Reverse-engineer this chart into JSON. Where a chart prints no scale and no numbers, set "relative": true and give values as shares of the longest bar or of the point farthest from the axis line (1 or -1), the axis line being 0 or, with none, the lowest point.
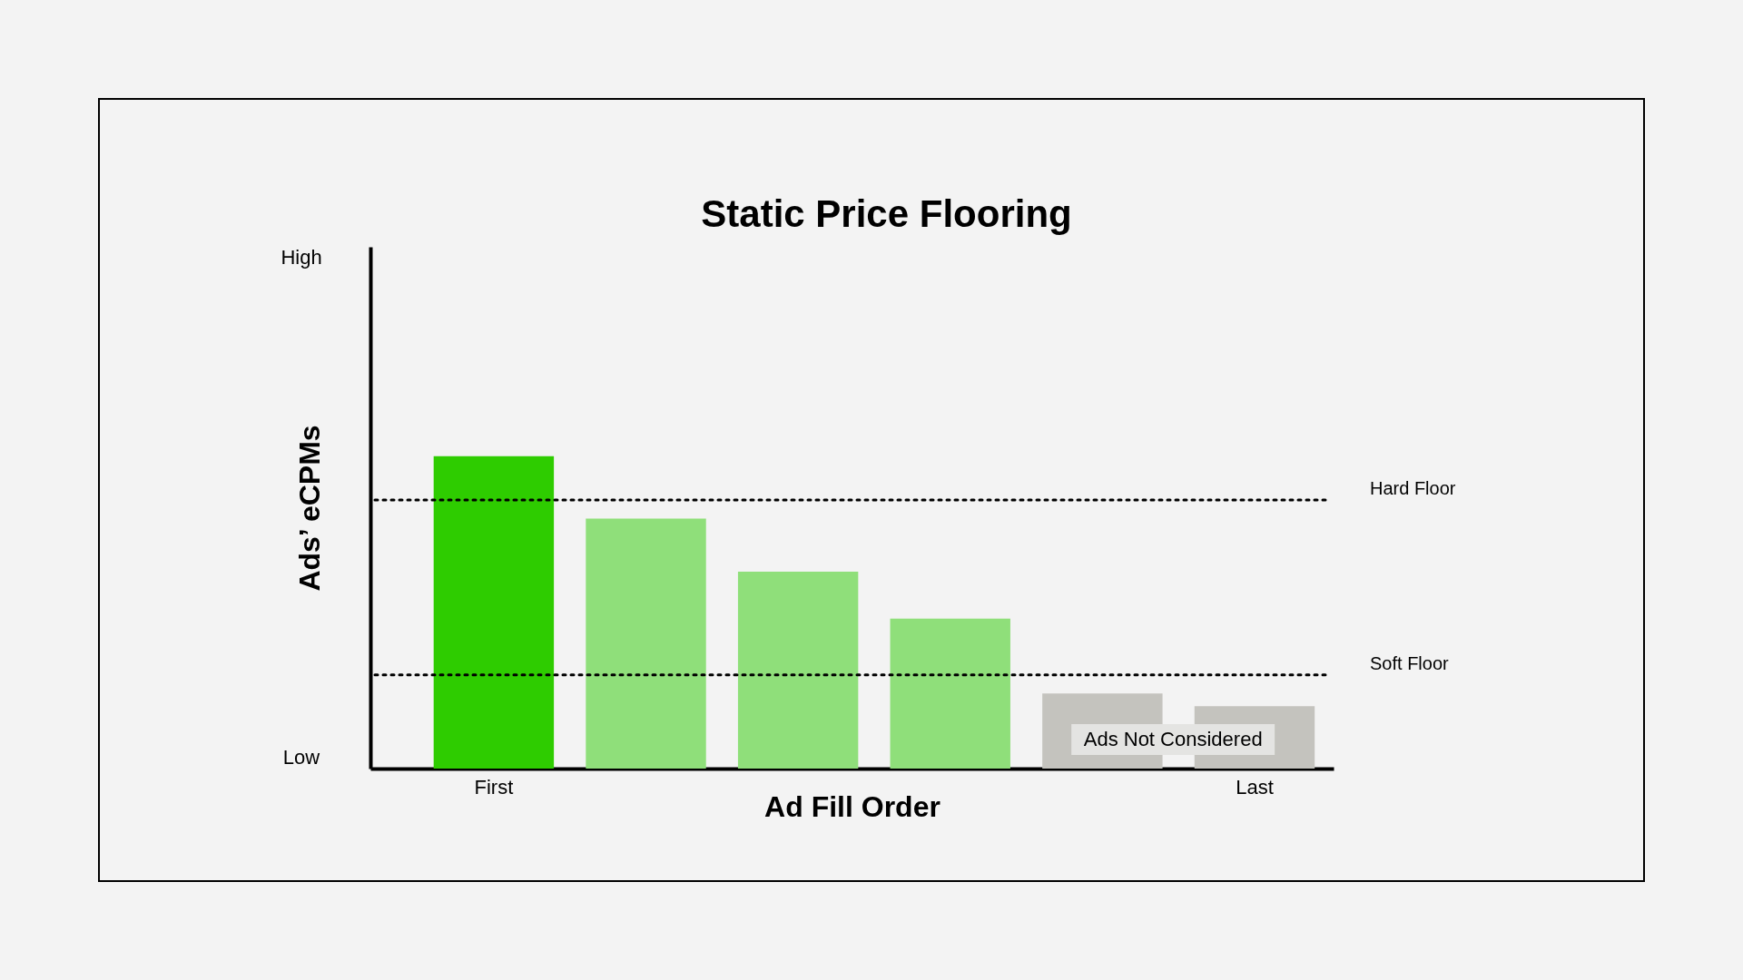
{
  "chart_data": {
    "type": "bar",
    "title": "Static Price Flooring",
    "xlabel": "Ad Fill Order",
    "ylabel": "Ads’ eCPMs",
    "categories": [
      "First",
      null,
      null,
      null,
      null,
      "Last"
    ],
    "values": [
      1.0,
      0.8,
      0.63,
      0.48,
      0.24,
      0.2
    ],
    "colors": [
      "#2ecc00",
      "#8fdf7a",
      "#8fdf7a",
      "#8fdf7a",
      "#c4c3be",
      "#c4c3be"
    ],
    "relative": true,
    "ref_lines": [
      {
        "axis": "y",
        "value": 0.86,
        "label": "Hard Floor",
        "color": "#000000",
        "line_style": "dotted"
      },
      {
        "axis": "y",
        "value": 0.3,
        "label": "Soft Floor",
        "color": "#000000",
        "line_style": "dotted"
      }
    ],
    "annotations": [
      "High",
      "Low",
      "Ads Not Considered"
    ],
    "grid": false
  }
}
